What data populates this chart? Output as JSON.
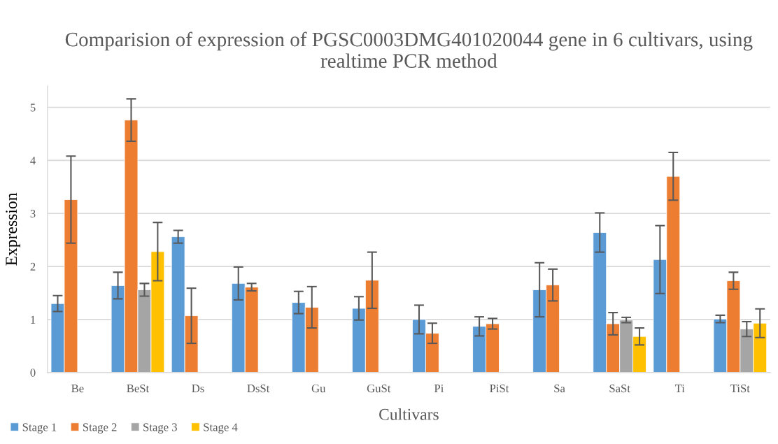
{
  "chart_data": {
    "type": "bar",
    "title": "Comparision of expression of PGSC0003DMG401020044 gene in 6 cultivars, using realtime PCR method",
    "xlabel": "Cultivars",
    "ylabel": "Expression",
    "categories": [
      "Be",
      "BeSt",
      "Ds",
      "DsSt",
      "Gu",
      "GuSt",
      "Pi",
      "PiSt",
      "Sa",
      "SaSt",
      "Ti",
      "TiSt"
    ],
    "series": [
      {
        "name": "Stage 1",
        "color": "#5b9bd5",
        "values": [
          1.3,
          1.64,
          2.56,
          1.68,
          1.32,
          1.21,
          1.0,
          0.87,
          1.56,
          2.64,
          2.13,
          1.01
        ],
        "errors": [
          0.15,
          0.25,
          0.12,
          0.31,
          0.21,
          0.22,
          0.27,
          0.18,
          0.51,
          0.37,
          0.64,
          0.07
        ]
      },
      {
        "name": "Stage 2",
        "color": "#ed7d31",
        "values": [
          3.26,
          4.76,
          1.07,
          1.61,
          1.23,
          1.74,
          0.74,
          0.92,
          1.65,
          0.92,
          3.7,
          1.73
        ],
        "errors": [
          0.82,
          0.4,
          0.52,
          0.07,
          0.39,
          0.53,
          0.19,
          0.1,
          0.3,
          0.21,
          0.45,
          0.16
        ]
      },
      {
        "name": "Stage 3",
        "color": "#a5a5a5",
        "values": [
          null,
          1.56,
          null,
          null,
          null,
          null,
          null,
          null,
          null,
          0.99,
          null,
          0.82
        ],
        "errors": [
          null,
          0.12,
          null,
          null,
          null,
          null,
          null,
          null,
          null,
          0.05,
          null,
          0.14
        ]
      },
      {
        "name": "Stage 4",
        "color": "#ffc000",
        "values": [
          null,
          2.28,
          null,
          null,
          null,
          null,
          null,
          null,
          null,
          0.68,
          null,
          0.93
        ],
        "errors": [
          null,
          0.55,
          null,
          null,
          null,
          null,
          null,
          null,
          null,
          0.16,
          null,
          0.27
        ]
      }
    ],
    "ylim": [
      0,
      5.4
    ],
    "yticks": [
      0,
      1,
      2,
      3,
      4,
      5
    ],
    "grid": "y",
    "legend": "bottom left"
  }
}
